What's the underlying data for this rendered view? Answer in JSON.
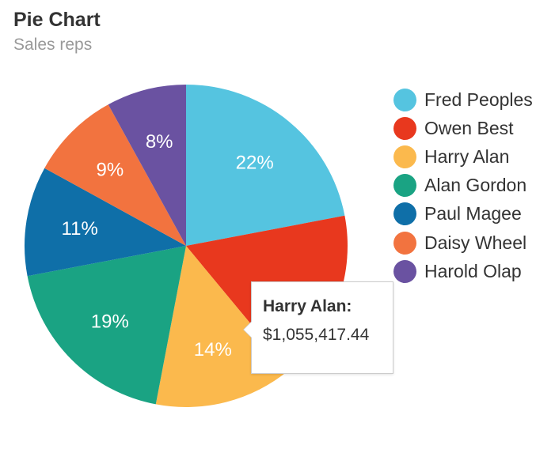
{
  "chart_data": {
    "type": "pie",
    "title": "Pie Chart",
    "subtitle": "Sales reps",
    "legend_position": "right",
    "slices": [
      {
        "name": "Fred Peoples",
        "percent": 22,
        "label": "22%",
        "color": "#55c4e0"
      },
      {
        "name": "Owen Best",
        "percent": 17,
        "label": "",
        "color": "#e8381e"
      },
      {
        "name": "Harry Alan",
        "percent": 14,
        "label": "14%",
        "color": "#fbb94d"
      },
      {
        "name": "Alan Gordon",
        "percent": 19,
        "label": "19%",
        "color": "#1aa383"
      },
      {
        "name": "Paul Magee",
        "percent": 11,
        "label": "11%",
        "color": "#0f6fa8"
      },
      {
        "name": "Daisy Wheel",
        "percent": 9,
        "label": "9%",
        "color": "#f2733f"
      },
      {
        "name": "Harold Olap",
        "percent": 8,
        "label": "8%",
        "color": "#6a52a1"
      }
    ],
    "tooltip": {
      "series": "Harry Alan:",
      "value": "$1,055,417.44"
    }
  }
}
